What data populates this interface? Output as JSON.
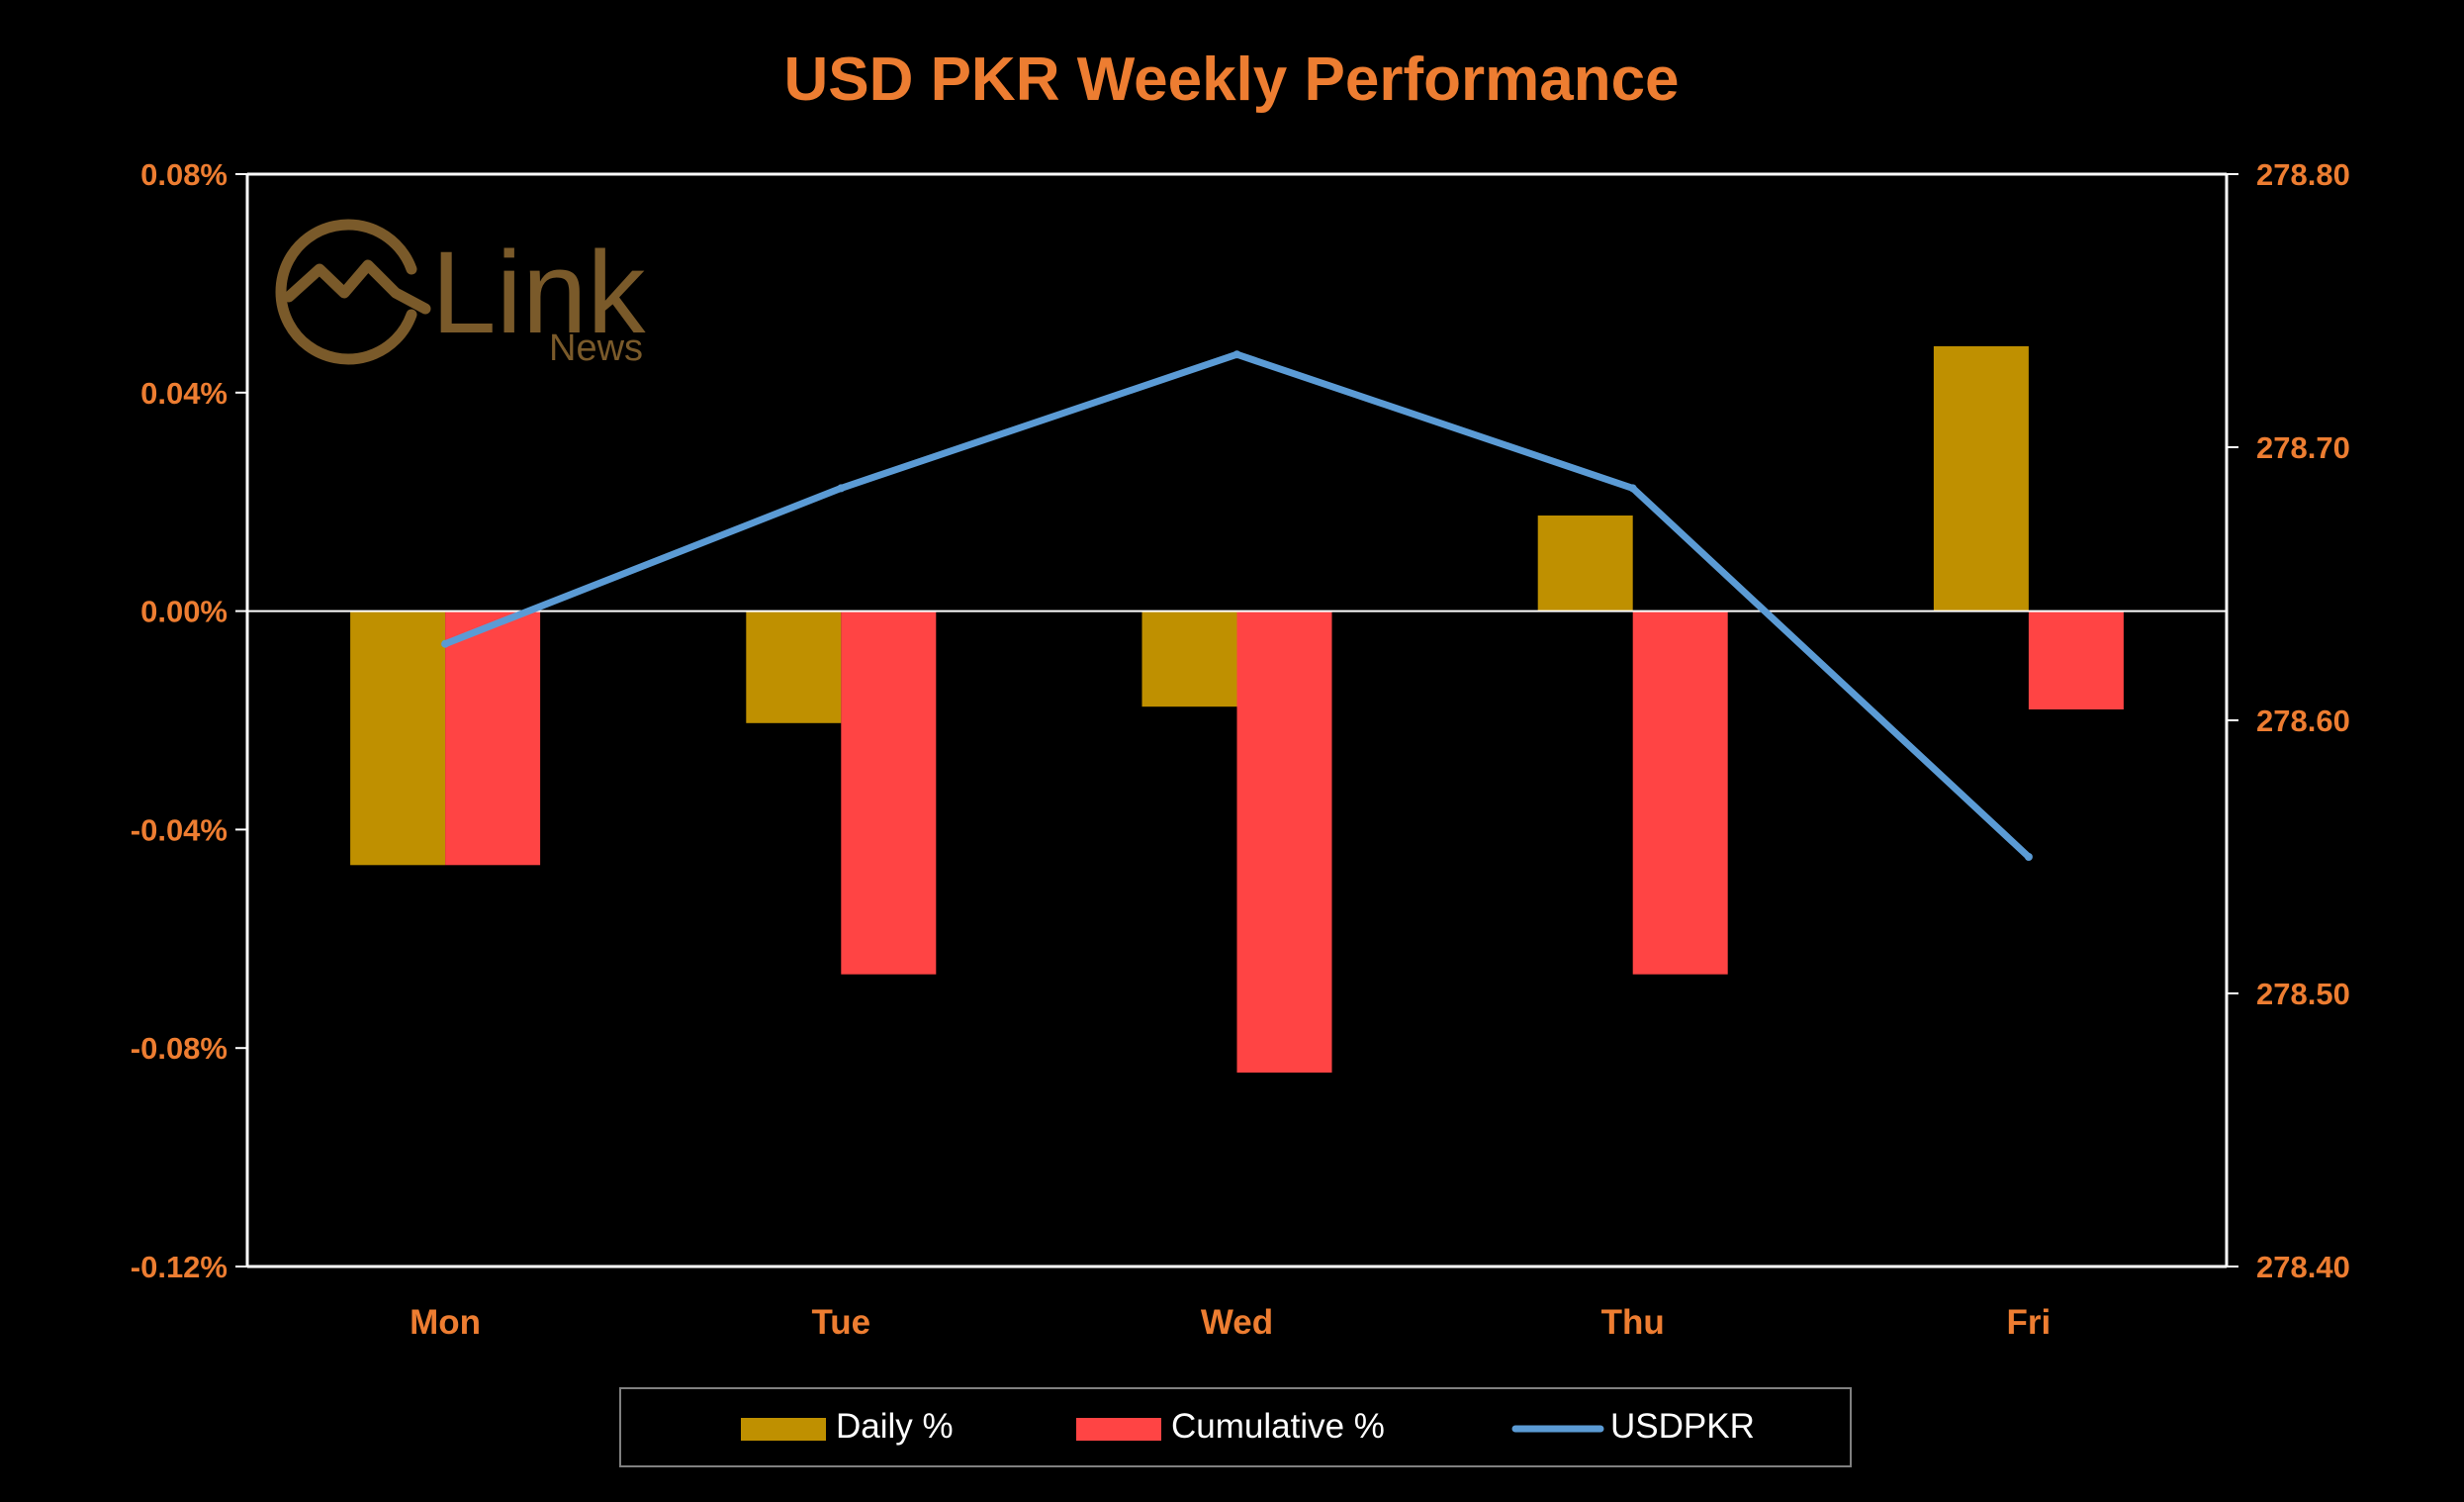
{
  "colors": {
    "background": "#000000",
    "accent_text": "#ED7D31",
    "daily_bar": "#BF9000",
    "cumulative_bar": "#FF4444",
    "line": "#5B9BD5",
    "axis": "#FFFFFF",
    "logo": "#7A5A2A"
  },
  "logo": {
    "icon": "mountain-circle-icon",
    "main": "Link",
    "sub": "News"
  },
  "chart_data": {
    "type": "bar",
    "title": "USD PKR Weekly Performance",
    "categories": [
      "Mon",
      "Tue",
      "Wed",
      "Thu",
      "Fri"
    ],
    "series": [
      {
        "name": "Daily %",
        "type": "bar",
        "axis": "left",
        "values": [
          -0.0465,
          -0.0205,
          -0.0175,
          0.0175,
          0.0485
        ]
      },
      {
        "name": "Cumulative %",
        "type": "bar",
        "axis": "left",
        "values": [
          -0.0465,
          -0.0665,
          -0.0845,
          -0.0665,
          -0.018
        ]
      },
      {
        "name": "USDPKR",
        "type": "line",
        "axis": "right",
        "values": [
          278.628,
          278.685,
          278.734,
          278.685,
          278.55
        ]
      }
    ],
    "y_left": {
      "ylim": [
        -0.12,
        0.08
      ],
      "ticks": [
        0.08,
        0.04,
        0.0,
        -0.04,
        -0.08,
        -0.12
      ],
      "tick_labels": [
        "0.08%",
        "0.04%",
        "0.00%",
        "-0.04%",
        "-0.08%",
        "-0.12%"
      ]
    },
    "y_right": {
      "ylim": [
        278.4,
        278.8
      ],
      "ticks": [
        278.8,
        278.7,
        278.6,
        278.5,
        278.4
      ],
      "tick_labels": [
        "278.80",
        "278.70",
        "278.60",
        "278.50",
        "278.40"
      ]
    },
    "grid": false,
    "legend_position": "bottom"
  }
}
